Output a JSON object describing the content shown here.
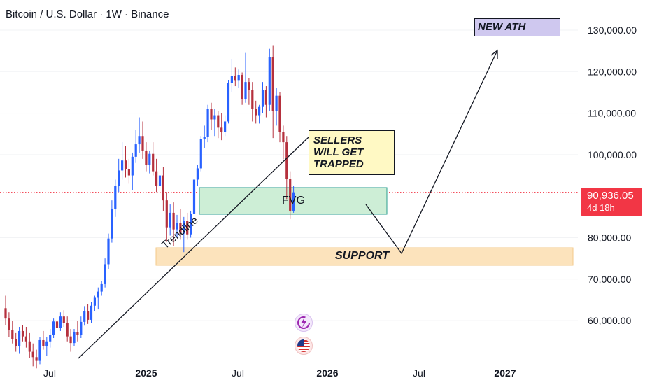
{
  "header": {
    "title": "Bitcoin / U.S. Dollar · 1W · Binance"
  },
  "price_badge": {
    "price": "90,936.05",
    "countdown": "4d 18h"
  },
  "annotations": {
    "sellers_note": "SELLERS\nWILL GET\nTRAPPED",
    "ath_note": "NEW ATH",
    "fvg_label": "FVG",
    "support_label": "SUPPORT",
    "trendline_label": "Trendline"
  },
  "icons": [
    "lightning-icon",
    "us-flag-icon"
  ],
  "colors": {
    "up": "#2962ff",
    "down": "#b5303d",
    "fvg_fill": "#cdeed6",
    "fvg_border": "#2a9d8f",
    "support_fill": "#fce3bc",
    "support_border": "#f3c98a",
    "ath_fill": "#cfc8ef",
    "note_fill": "#fff9c4",
    "price_line": "#f23645"
  },
  "chart_data": {
    "type": "candlestick",
    "title": "Bitcoin / U.S. Dollar · 1W · Binance",
    "y_ticks": [
      "130,000.00",
      "120,000.00",
      "110,000.00",
      "100,000.00",
      "80,000.00",
      "70,000.00",
      "60,000.00"
    ],
    "x_ticks": [
      "Jul",
      "2025",
      "Jul",
      "2026",
      "Jul",
      "2027"
    ],
    "current_price": 90936.05,
    "candles": [
      [
        63000,
        66000,
        59000,
        60500
      ],
      [
        60500,
        62000,
        56000,
        57800
      ],
      [
        57800,
        60000,
        54500,
        55500
      ],
      [
        55500,
        57000,
        52500,
        53800
      ],
      [
        53800,
        58500,
        52000,
        57500
      ],
      [
        57500,
        59000,
        55000,
        56200
      ],
      [
        56200,
        58500,
        53500,
        55000
      ],
      [
        55000,
        57000,
        51000,
        52500
      ],
      [
        52500,
        54500,
        49000,
        51200
      ],
      [
        51200,
        53000,
        48500,
        50300
      ],
      [
        50300,
        56000,
        49500,
        55300
      ],
      [
        55300,
        57500,
        53000,
        53800
      ],
      [
        53800,
        56000,
        51500,
        55000
      ],
      [
        55000,
        58000,
        53500,
        56600
      ],
      [
        56600,
        60500,
        55800,
        59800
      ],
      [
        59800,
        61000,
        57000,
        58300
      ],
      [
        58300,
        62000,
        57500,
        61000
      ],
      [
        61000,
        62500,
        58500,
        59500
      ],
      [
        59500,
        61000,
        55000,
        56200
      ],
      [
        56200,
        58000,
        52500,
        54600
      ],
      [
        54600,
        58000,
        53800,
        57200
      ],
      [
        57200,
        60000,
        55000,
        56500
      ],
      [
        56500,
        61000,
        55800,
        59700
      ],
      [
        59700,
        63500,
        58800,
        62300
      ],
      [
        62300,
        64000,
        59200,
        60200
      ],
      [
        60200,
        64500,
        59500,
        63600
      ],
      [
        63600,
        66000,
        62300,
        65500
      ],
      [
        65500,
        68000,
        62700,
        67000
      ],
      [
        67000,
        69500,
        66000,
        68800
      ],
      [
        68800,
        75000,
        68000,
        73600
      ],
      [
        73600,
        81000,
        72500,
        79800
      ],
      [
        79800,
        89000,
        78800,
        87000
      ],
      [
        87000,
        94000,
        85000,
        92500
      ],
      [
        92500,
        99000,
        91000,
        96200
      ],
      [
        96200,
        103000,
        94000,
        98600
      ],
      [
        98600,
        102000,
        94500,
        96500
      ],
      [
        96500,
        99000,
        93000,
        95000
      ],
      [
        95000,
        100500,
        91500,
        99500
      ],
      [
        99500,
        106000,
        98000,
        102500
      ],
      [
        102500,
        109000,
        100500,
        104500
      ],
      [
        104500,
        108000,
        99000,
        101000
      ],
      [
        101000,
        103000,
        96000,
        97500
      ],
      [
        97500,
        101000,
        95500,
        100200
      ],
      [
        100200,
        103000,
        95000,
        96000
      ],
      [
        96000,
        99000,
        91000,
        92500
      ],
      [
        92500,
        96500,
        89000,
        95000
      ],
      [
        95000,
        97000,
        86500,
        89000
      ],
      [
        89000,
        91000,
        79000,
        82500
      ],
      [
        82500,
        88000,
        80500,
        86000
      ],
      [
        86000,
        88500,
        78000,
        82000
      ],
      [
        82000,
        85500,
        80000,
        83500
      ],
      [
        83500,
        87000,
        79500,
        81000
      ],
      [
        81000,
        85000,
        76500,
        84000
      ],
      [
        84000,
        86000,
        79500,
        80800
      ],
      [
        80800,
        86500,
        80000,
        85800
      ],
      [
        85800,
        94500,
        85000,
        94000
      ],
      [
        94000,
        97500,
        92500,
        96700
      ],
      [
        96700,
        104500,
        96000,
        103800
      ],
      [
        103800,
        107000,
        101500,
        104200
      ],
      [
        104200,
        112000,
        103000,
        111000
      ],
      [
        111000,
        112500,
        106000,
        108500
      ],
      [
        108500,
        111000,
        104500,
        109500
      ],
      [
        109500,
        110500,
        104000,
        106500
      ],
      [
        106500,
        110000,
        103500,
        105500
      ],
      [
        105500,
        109500,
        104500,
        108000
      ],
      [
        108000,
        118000,
        107500,
        117300
      ],
      [
        117300,
        123000,
        115000,
        119000
      ],
      [
        119000,
        121000,
        116500,
        117800
      ],
      [
        117800,
        120500,
        116000,
        119200
      ],
      [
        119200,
        119800,
        112000,
        113300
      ],
      [
        113300,
        124500,
        112500,
        117500
      ],
      [
        117500,
        118500,
        112000,
        115600
      ],
      [
        115600,
        117500,
        108000,
        111000
      ],
      [
        111000,
        113000,
        107500,
        109500
      ],
      [
        109500,
        112000,
        107500,
        111500
      ],
      [
        111500,
        117500,
        110000,
        115500
      ],
      [
        115500,
        116500,
        109000,
        112000
      ],
      [
        112000,
        125500,
        110500,
        123500
      ],
      [
        123500,
        126200,
        104000,
        110500
      ],
      [
        110500,
        116000,
        107000,
        114200
      ],
      [
        114200,
        115000,
        103000,
        105500
      ],
      [
        105500,
        107000,
        98900,
        103000
      ],
      [
        103000,
        104500,
        89300,
        94200
      ],
      [
        94200,
        96000,
        84500,
        86500
      ],
      [
        86500,
        92500,
        86000,
        90936
      ]
    ]
  }
}
